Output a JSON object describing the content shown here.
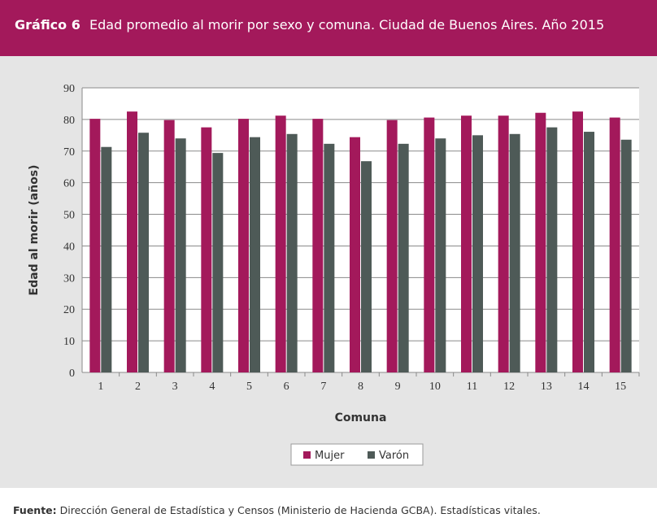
{
  "header": {
    "label": "Gráfico 6",
    "title": "Edad promedio al morir por sexo y comuna. Ciudad de Buenos Aires. Año 2015"
  },
  "source": {
    "label": "Fuente:",
    "text": "Dirección General de Estadística y Censos (Ministerio de Hacienda GCBA). Estadísticas vitales."
  },
  "colors": {
    "mujer": "#a3195b",
    "varon": "#4e5a57",
    "header": "#a3195b",
    "panel": "#e5e5e5"
  },
  "chart_data": {
    "type": "bar",
    "title": "Edad promedio al morir por sexo y comuna. Ciudad de Buenos Aires. Año 2015",
    "xlabel": "Comuna",
    "ylabel": "Edad al morir (años)",
    "ylim": [
      0,
      90
    ],
    "yticks": [
      0,
      10,
      20,
      30,
      40,
      50,
      60,
      70,
      80,
      90
    ],
    "categories": [
      "1",
      "2",
      "3",
      "4",
      "5",
      "6",
      "7",
      "8",
      "9",
      "10",
      "11",
      "12",
      "13",
      "14",
      "15"
    ],
    "series": [
      {
        "name": "Mujer",
        "values": [
          80.2,
          82.5,
          79.8,
          77.5,
          80.2,
          81.2,
          80.2,
          74.4,
          79.8,
          80.6,
          81.2,
          81.2,
          82.1,
          82.5,
          80.6
        ]
      },
      {
        "name": "Varón",
        "values": [
          71.3,
          75.8,
          74.0,
          69.4,
          74.4,
          75.4,
          72.3,
          66.8,
          72.3,
          74.0,
          75.0,
          75.4,
          77.5,
          76.1,
          73.6
        ]
      }
    ],
    "grid": true,
    "legend": "bottom-center"
  }
}
